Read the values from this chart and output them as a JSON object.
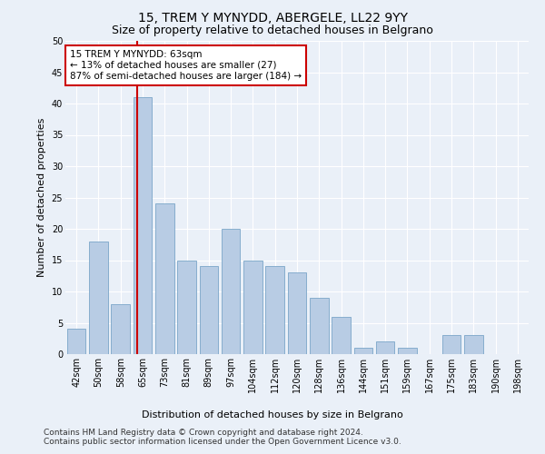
{
  "title1": "15, TREM Y MYNYDD, ABERGELE, LL22 9YY",
  "title2": "Size of property relative to detached houses in Belgrano",
  "xlabel": "Distribution of detached houses by size in Belgrano",
  "ylabel": "Number of detached properties",
  "categories": [
    "42sqm",
    "50sqm",
    "58sqm",
    "65sqm",
    "73sqm",
    "81sqm",
    "89sqm",
    "97sqm",
    "104sqm",
    "112sqm",
    "120sqm",
    "128sqm",
    "136sqm",
    "144sqm",
    "151sqm",
    "159sqm",
    "167sqm",
    "175sqm",
    "183sqm",
    "190sqm",
    "198sqm"
  ],
  "values": [
    4,
    18,
    8,
    41,
    24,
    15,
    14,
    20,
    15,
    14,
    13,
    9,
    6,
    1,
    2,
    1,
    0,
    3,
    3,
    0,
    0
  ],
  "bar_color": "#b8cce4",
  "bar_edge_color": "#7aa6c8",
  "vline_x": 3,
  "vline_color": "#cc0000",
  "annotation_line1": "15 TREM Y MYNYDD: 63sqm",
  "annotation_line2": "← 13% of detached houses are smaller (27)",
  "annotation_line3": "87% of semi-detached houses are larger (184) →",
  "annotation_box_color": "#ffffff",
  "annotation_box_edge": "#cc0000",
  "ylim": [
    0,
    50
  ],
  "yticks": [
    0,
    5,
    10,
    15,
    20,
    25,
    30,
    35,
    40,
    45,
    50
  ],
  "bin_width": 1,
  "n_bins": 21,
  "footer1": "Contains HM Land Registry data © Crown copyright and database right 2024.",
  "footer2": "Contains public sector information licensed under the Open Government Licence v3.0.",
  "background_color": "#eaf0f8",
  "grid_color": "#ffffff",
  "title1_fontsize": 10,
  "title2_fontsize": 9,
  "axis_label_fontsize": 8,
  "tick_fontsize": 7,
  "footer_fontsize": 6.5,
  "annotation_fontsize": 7.5
}
